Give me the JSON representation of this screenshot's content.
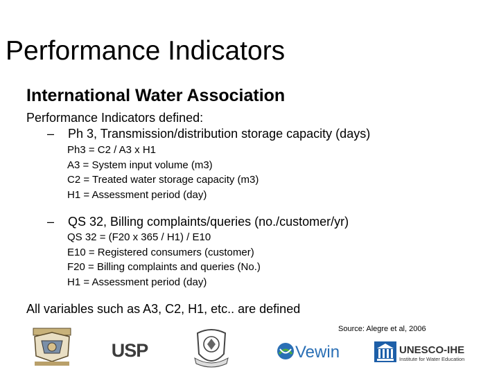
{
  "slide": {
    "title": "Performance Indicators",
    "subtitle": "International Water Association",
    "intro": "Performance Indicators defined:",
    "bullets": [
      {
        "dash": "–",
        "text": "Ph 3, Transmission/distribution storage capacity (days)",
        "details": [
          "Ph3 = C2 / A3 x H1",
          "A3 = System input volume (m3)",
          "C2 = Treated water storage capacity (m3)",
          "H1 = Assessment period (day)"
        ]
      },
      {
        "dash": "–",
        "text": "QS 32, Billing complaints/queries (no./customer/yr)",
        "details": [
          "QS 32 = (F20 x 365 / H1) / E10",
          "E10 = Registered consumers (customer)",
          "F20 = Billing complaints and queries (No.)",
          "H1 = Assessment period (day)"
        ]
      }
    ],
    "conclusion": "All variables such as A3, C2, H1, etc.. are defined",
    "source": "Source: Alegre et al, 2006"
  },
  "logos": {
    "usp": "USP",
    "vewin": "Vewin",
    "unesco_main": "UNESCO-IHE",
    "unesco_sub": "Institute for Water Education"
  },
  "colors": {
    "unesco_blue": "#1d5fa8",
    "vewin_blue": "#2a6fb5",
    "vewin_green": "#4fae3f"
  }
}
